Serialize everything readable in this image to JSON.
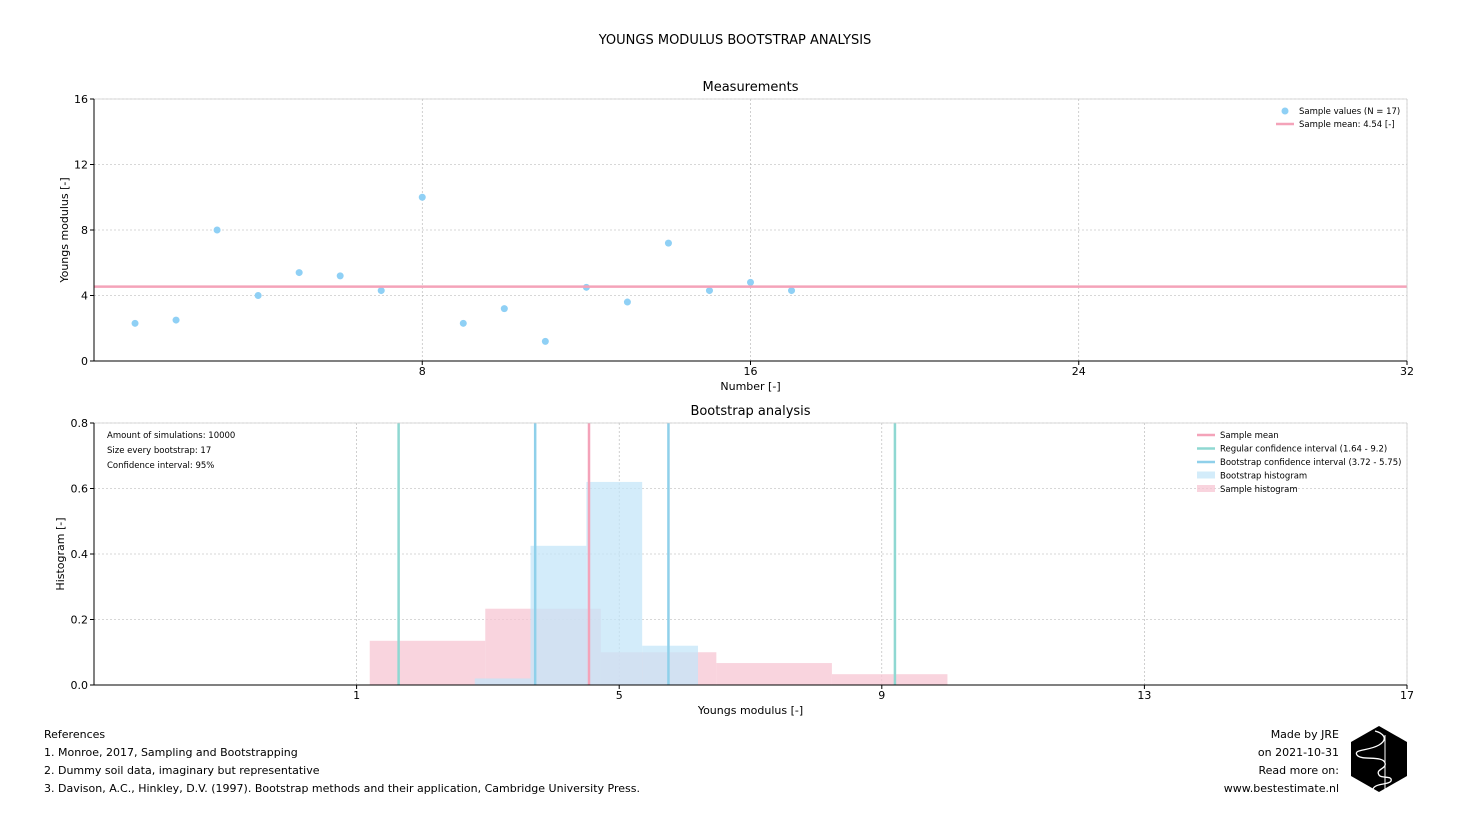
{
  "figure": {
    "suptitle": "YOUNGS MODULUS BOOTSTRAP ANALYSIS"
  },
  "chart_data": [
    {
      "type": "scatter",
      "title": "Measurements",
      "xlabel": "Number [-]",
      "ylabel": "Youngs modulus [-]",
      "xlim": [
        0,
        32
      ],
      "ylim": [
        0,
        16
      ],
      "xticks": [
        8,
        16,
        24,
        32
      ],
      "yticks": [
        0,
        4,
        8,
        12,
        16
      ],
      "grid": true,
      "legend_position": "top-right",
      "series": [
        {
          "name": "Sample values (N = 17)",
          "kind": "scatter",
          "color": "#8fd0f5",
          "x": [
            1,
            2,
            3,
            4,
            5,
            6,
            7,
            8,
            9,
            10,
            11,
            12,
            13,
            14,
            15,
            16,
            17
          ],
          "y": [
            2.3,
            2.5,
            8.0,
            4.0,
            5.4,
            5.2,
            4.3,
            10.0,
            2.3,
            3.2,
            1.2,
            4.5,
            3.6,
            7.2,
            4.3,
            4.8,
            4.3
          ]
        },
        {
          "name": "Sample mean: 4.54 [-]",
          "kind": "hline",
          "color": "#f4a3b9",
          "y": 4.54
        }
      ]
    },
    {
      "type": "histogram",
      "title": "Bootstrap analysis",
      "xlabel": "Youngs modulus [-]",
      "ylabel": "Histogram [-]",
      "xlim": [
        -3,
        17
      ],
      "ylim": [
        0,
        0.8
      ],
      "xticks": [
        1,
        5,
        9,
        13,
        17
      ],
      "yticks": [
        0.0,
        0.2,
        0.4,
        0.6,
        0.8
      ],
      "grid": true,
      "legend_position": "top-right",
      "annotations": [
        "Amount of simulations: 10000",
        "Size every bootstrap: 17",
        "Confidence interval: 95%"
      ],
      "series": [
        {
          "name": "Sample histogram",
          "kind": "bins",
          "color": "#f7c6d3",
          "bins": [
            [
              1.2,
              2.96,
              0.135
            ],
            [
              2.96,
              4.72,
              0.233
            ],
            [
              4.72,
              6.48,
              0.1
            ],
            [
              6.48,
              8.24,
              0.067
            ],
            [
              8.24,
              10.0,
              0.033
            ]
          ]
        },
        {
          "name": "Bootstrap histogram",
          "kind": "bins",
          "color": "#c4e5f8",
          "bins": [
            [
              2.8,
              3.65,
              0.02
            ],
            [
              3.65,
              4.5,
              0.425
            ],
            [
              4.5,
              5.35,
              0.62
            ],
            [
              5.35,
              6.2,
              0.12
            ]
          ]
        },
        {
          "name": "Regular confidence interval (1.64 - 9.2)",
          "kind": "vlines",
          "color": "#8fd8d2",
          "x": [
            1.64,
            9.2
          ]
        },
        {
          "name": "Bootstrap confidence interval (3.72 - 5.75)",
          "kind": "vlines",
          "color": "#8fd0ea",
          "x": [
            3.72,
            5.75
          ]
        },
        {
          "name": "Sample mean",
          "kind": "vlines",
          "color": "#f4a3b9",
          "x": [
            4.54
          ]
        }
      ],
      "legend_order": [
        "Sample mean",
        "Regular confidence interval (1.64 - 9.2)",
        "Bootstrap confidence interval (3.72 - 5.75)",
        "Bootstrap histogram",
        "Sample histogram"
      ]
    }
  ],
  "references": {
    "heading": "References",
    "items": [
      "1. Monroe, 2017, Sampling and Bootstrapping",
      "2. Dummy soil data, imaginary but representative",
      "3. Davison, A.C., Hinkley, D.V. (1997). Bootstrap methods and their application, Cambridge University Press."
    ]
  },
  "credits": {
    "lines": [
      "Made by JRE",
      "on 2021-10-31",
      "Read more on:",
      "www.bestestimate.nl"
    ]
  }
}
